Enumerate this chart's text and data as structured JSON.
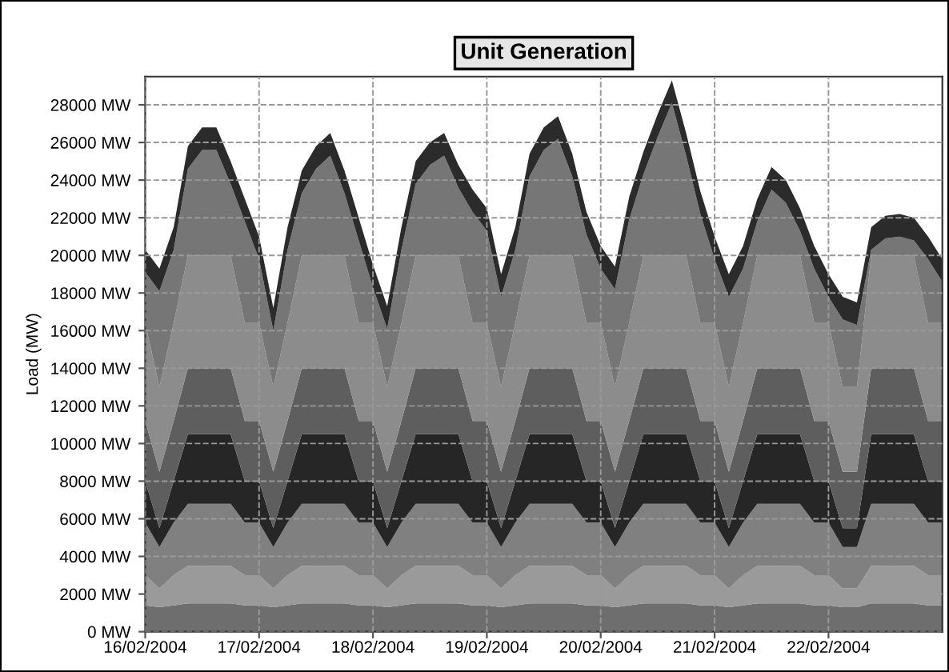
{
  "chart_data": {
    "type": "area",
    "stacked": true,
    "title": "Unit Generation",
    "ylabel": "Load (MW)",
    "legend": false,
    "grid": true,
    "x": [
      "2004-02-16T00:00",
      "2004-02-16T03:00",
      "2004-02-16T06:00",
      "2004-02-16T09:00",
      "2004-02-16T12:00",
      "2004-02-16T15:00",
      "2004-02-16T18:00",
      "2004-02-16T21:00",
      "2004-02-17T00:00",
      "2004-02-17T03:00",
      "2004-02-17T06:00",
      "2004-02-17T09:00",
      "2004-02-17T12:00",
      "2004-02-17T15:00",
      "2004-02-17T18:00",
      "2004-02-17T21:00",
      "2004-02-18T00:00",
      "2004-02-18T03:00",
      "2004-02-18T06:00",
      "2004-02-18T09:00",
      "2004-02-18T12:00",
      "2004-02-18T15:00",
      "2004-02-18T18:00",
      "2004-02-18T21:00",
      "2004-02-19T00:00",
      "2004-02-19T03:00",
      "2004-02-19T06:00",
      "2004-02-19T09:00",
      "2004-02-19T12:00",
      "2004-02-19T15:00",
      "2004-02-19T18:00",
      "2004-02-19T21:00",
      "2004-02-20T00:00",
      "2004-02-20T03:00",
      "2004-02-20T06:00",
      "2004-02-20T09:00",
      "2004-02-20T12:00",
      "2004-02-20T15:00",
      "2004-02-20T18:00",
      "2004-02-20T21:00",
      "2004-02-21T00:00",
      "2004-02-21T03:00",
      "2004-02-21T06:00",
      "2004-02-21T09:00",
      "2004-02-21T12:00",
      "2004-02-21T15:00",
      "2004-02-21T18:00",
      "2004-02-21T21:00",
      "2004-02-22T00:00",
      "2004-02-22T03:00",
      "2004-02-22T06:00",
      "2004-02-22T09:00",
      "2004-02-22T12:00",
      "2004-02-22T15:00",
      "2004-02-22T18:00",
      "2004-02-22T21:00",
      "2004-02-23T00:00"
    ],
    "xlim": [
      "2004-02-16T00:00",
      "2004-02-23T00:00"
    ],
    "xticks": [
      {
        "value": "2004-02-16T00:00",
        "label": "16/02/2004"
      },
      {
        "value": "2004-02-17T00:00",
        "label": "17/02/2004"
      },
      {
        "value": "2004-02-18T00:00",
        "label": "18/02/2004"
      },
      {
        "value": "2004-02-19T00:00",
        "label": "19/02/2004"
      },
      {
        "value": "2004-02-20T00:00",
        "label": "20/02/2004"
      },
      {
        "value": "2004-02-21T00:00",
        "label": "21/02/2004"
      },
      {
        "value": "2004-02-22T00:00",
        "label": "22/02/2004"
      }
    ],
    "ylim": [
      0,
      29500
    ],
    "yticks": [
      {
        "value": 0,
        "label": "0 MW"
      },
      {
        "value": 2000,
        "label": "2000 MW"
      },
      {
        "value": 4000,
        "label": "4000 MW"
      },
      {
        "value": 6000,
        "label": "6000 MW"
      },
      {
        "value": 8000,
        "label": "8000 MW"
      },
      {
        "value": 10000,
        "label": "10000 MW"
      },
      {
        "value": 12000,
        "label": "12000 MW"
      },
      {
        "value": 14000,
        "label": "14000 MW"
      },
      {
        "value": 16000,
        "label": "16000 MW"
      },
      {
        "value": 18000,
        "label": "18000 MW"
      },
      {
        "value": 20000,
        "label": "20000 MW"
      },
      {
        "value": 22000,
        "label": "22000 MW"
      },
      {
        "value": 24000,
        "label": "24000 MW"
      },
      {
        "value": 26000,
        "label": "26000 MW"
      },
      {
        "value": 28000,
        "label": "28000 MW"
      }
    ],
    "series": [
      {
        "color": "#6e6e6e",
        "values": [
          1400,
          1300,
          1400,
          1500,
          1500,
          1500,
          1500,
          1400,
          1400,
          1300,
          1400,
          1500,
          1500,
          1500,
          1500,
          1400,
          1400,
          1300,
          1400,
          1500,
          1500,
          1500,
          1500,
          1400,
          1400,
          1300,
          1400,
          1500,
          1500,
          1500,
          1500,
          1400,
          1400,
          1300,
          1400,
          1500,
          1500,
          1500,
          1500,
          1400,
          1400,
          1300,
          1400,
          1500,
          1500,
          1500,
          1500,
          1400,
          1400,
          1300,
          1300,
          1500,
          1500,
          1500,
          1500,
          1400,
          1400
        ]
      },
      {
        "color": "#9a9a9a",
        "values": [
          1600,
          1000,
          1600,
          2000,
          2000,
          2000,
          2000,
          1600,
          1600,
          1000,
          1600,
          2000,
          2000,
          2000,
          2000,
          1600,
          1600,
          1000,
          1600,
          2000,
          2000,
          2000,
          2000,
          1600,
          1600,
          1000,
          1600,
          2000,
          2000,
          2000,
          2000,
          1600,
          1600,
          1000,
          1600,
          2000,
          2000,
          2000,
          2000,
          1600,
          1600,
          1000,
          1600,
          2000,
          2000,
          2000,
          2000,
          1600,
          1600,
          1000,
          1000,
          2000,
          2000,
          2000,
          2000,
          1600,
          1600
        ]
      },
      {
        "color": "#808080",
        "values": [
          2800,
          2200,
          2800,
          3300,
          3300,
          3300,
          3300,
          2800,
          2800,
          2200,
          2800,
          3300,
          3300,
          3300,
          3300,
          2800,
          2800,
          2200,
          2800,
          3300,
          3300,
          3300,
          3300,
          2800,
          2800,
          2200,
          2800,
          3300,
          3300,
          3300,
          3300,
          2800,
          2800,
          2200,
          2800,
          3300,
          3300,
          3300,
          3300,
          2800,
          2800,
          2200,
          2800,
          3300,
          3300,
          3300,
          3300,
          2800,
          2800,
          2200,
          2200,
          3300,
          3300,
          3300,
          3300,
          2800,
          2800
        ]
      },
      {
        "color": "#262626",
        "values": [
          2200,
          1000,
          2200,
          3700,
          3700,
          3700,
          3700,
          2200,
          2200,
          1000,
          2200,
          3700,
          3700,
          3700,
          3700,
          2200,
          2200,
          1000,
          2200,
          3700,
          3700,
          3700,
          3700,
          2200,
          2200,
          1000,
          2200,
          3700,
          3700,
          3700,
          3700,
          2200,
          2200,
          1000,
          2200,
          3700,
          3700,
          3700,
          3700,
          2200,
          2200,
          1000,
          2200,
          3700,
          3700,
          3700,
          3700,
          2200,
          2200,
          1000,
          1000,
          3700,
          3700,
          3700,
          3700,
          2200,
          2200
        ]
      },
      {
        "color": "#5e5e5e",
        "values": [
          3200,
          3000,
          3200,
          3500,
          3500,
          3500,
          3500,
          3200,
          3200,
          3000,
          3200,
          3500,
          3500,
          3500,
          3500,
          3200,
          3200,
          3000,
          3200,
          3500,
          3500,
          3500,
          3500,
          3200,
          3200,
          3000,
          3200,
          3500,
          3500,
          3500,
          3500,
          3200,
          3200,
          3000,
          3200,
          3500,
          3500,
          3500,
          3500,
          3200,
          3200,
          3000,
          3200,
          3500,
          3500,
          3500,
          3500,
          3200,
          3200,
          3000,
          3000,
          3500,
          3500,
          3500,
          3500,
          3200,
          3200
        ]
      },
      {
        "color": "#8c8c8c",
        "values": [
          5200,
          4500,
          5200,
          6000,
          6000,
          6000,
          6000,
          5200,
          5200,
          4500,
          5200,
          6000,
          6000,
          6000,
          6000,
          5200,
          5200,
          4500,
          5200,
          6000,
          6000,
          6000,
          6000,
          5200,
          5200,
          4500,
          5200,
          6000,
          6000,
          6000,
          6000,
          5200,
          5200,
          4500,
          5200,
          6000,
          6000,
          6000,
          6000,
          5200,
          5200,
          4500,
          5200,
          6000,
          6000,
          6000,
          6000,
          5200,
          5200,
          4500,
          4500,
          6000,
          6000,
          6000,
          6000,
          5200,
          5200
        ]
      },
      {
        "color": "#767676",
        "values": [
          2700,
          5100,
          3900,
          4600,
          5600,
          5600,
          3800,
          5400,
          3400,
          3000,
          3900,
          3300,
          4600,
          5300,
          3300,
          4400,
          1900,
          3100,
          3900,
          3800,
          4800,
          5300,
          3600,
          5900,
          4900,
          4800,
          3900,
          4200,
          5600,
          6200,
          4200,
          4700,
          2900,
          5200,
          5500,
          4300,
          6300,
          8100,
          5300,
          5800,
          3400,
          4800,
          2900,
          1800,
          3500,
          2800,
          1300,
          2900,
          1400,
          3600,
          3300,
          300,
          900,
          1000,
          800,
          3400,
          2200
        ]
      },
      {
        "color": "#2b2b2b",
        "values": [
          1200,
          1200,
          1200,
          1200,
          1200,
          1200,
          1200,
          1200,
          1200,
          1200,
          1200,
          1200,
          1200,
          1200,
          1200,
          1200,
          1200,
          1200,
          1200,
          1200,
          1200,
          1200,
          1200,
          1200,
          1200,
          1200,
          1200,
          1200,
          1200,
          1200,
          1200,
          1200,
          1200,
          1200,
          1200,
          1200,
          1200,
          1200,
          1200,
          1200,
          1200,
          1200,
          1200,
          1200,
          1200,
          1200,
          1200,
          1200,
          1200,
          1200,
          1200,
          1200,
          1200,
          1200,
          1200,
          1200,
          1200
        ]
      }
    ]
  }
}
